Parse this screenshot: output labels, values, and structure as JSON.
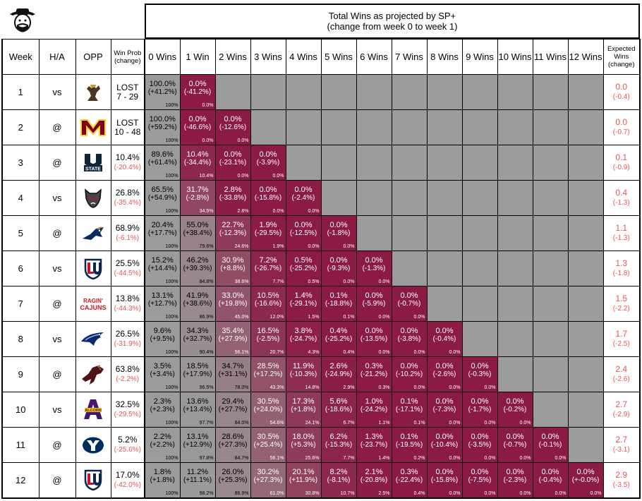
{
  "header": {
    "title_line1": "Total Wins as projected by SP+",
    "title_line2": "(change from week 0 to week 1)"
  },
  "columns": {
    "week": "Week",
    "ha": "H/A",
    "opp": "OPP",
    "winprob_line1": "Win Prob",
    "winprob_line2": "(change)",
    "wins": [
      "0 Wins",
      "1 Win",
      "2 Wins",
      "3 Wins",
      "4 Wins",
      "5 Wins",
      "6 Wins",
      "7 Wins",
      "8 Wins",
      "9 Wins",
      "10 Wins",
      "11 Wins",
      "12 Wins"
    ],
    "expected_line1": "Expected",
    "expected_line2": "Wins",
    "expected_line3": "(change)"
  },
  "colors": {
    "max": "#8b1a45",
    "min": "#9b9b9b",
    "gray_fill": "#9b9b9b",
    "negative_text": "#e15759"
  },
  "chart_data": {
    "type": "table",
    "title": "Total Wins as projected by SP+",
    "subtitle": "(change from week 0 to week 1)",
    "rows": [
      {
        "week": "1",
        "ha": "vs",
        "opp_logo": "wyoming-cowboy-logo",
        "wp": "LOST",
        "wp2": "7 - 29",
        "wp_is_result": true,
        "ex": "0.0",
        "ex_chg": "(-0.4)",
        "cells": [
          [
            "100.0%",
            "(+41.2%)",
            "100%"
          ],
          [
            "0.0%",
            "(-41.2%)",
            "0.0%"
          ]
        ]
      },
      {
        "week": "2",
        "ha": "@",
        "opp_logo": "minnesota-m-logo",
        "wp": "LOST",
        "wp2": "10 - 48",
        "wp_is_result": true,
        "ex": "0.0",
        "ex_chg": "(-0.7)",
        "cells": [
          [
            "100.0%",
            "(+59.2%)",
            "100%"
          ],
          [
            "0.0%",
            "(-46.6%)",
            "0.0%"
          ],
          [
            "0.0%",
            "(-12.6%)",
            "0.0%"
          ]
        ]
      },
      {
        "week": "3",
        "ha": "@",
        "opp_logo": "utah-state-logo",
        "wp": "10.4%",
        "wp2": "(-20.4%)",
        "wp_is_result": false,
        "ex": "0.1",
        "ex_chg": "(-0.9)",
        "cells": [
          [
            "89.6%",
            "(+61.4%)",
            "100%"
          ],
          [
            "10.4%",
            "(-34.4%)",
            "10.4%"
          ],
          [
            "0.0%",
            "(-23.1%)",
            "0.0%"
          ],
          [
            "0.0%",
            "(-3.9%)",
            "0.0%"
          ]
        ]
      },
      {
        "week": "4",
        "ha": "vs",
        "opp_logo": "new-mexico-lobo-logo",
        "wp": "26.8%",
        "wp2": "(-35.4%)",
        "wp_is_result": false,
        "ex": "0.4",
        "ex_chg": "(-1.3)",
        "cells": [
          [
            "65.5%",
            "(+54.9%)",
            "100%"
          ],
          [
            "31.7%",
            "(-2.8%)",
            "34.5%"
          ],
          [
            "2.8%",
            "(-33.8%)",
            "2.8%"
          ],
          [
            "0.0%",
            "(-15.8%)",
            "0.0%"
          ],
          [
            "0.0%",
            "(-2.4%)",
            "0.0%"
          ]
        ]
      },
      {
        "week": "5",
        "ha": "@",
        "opp_logo": "fiu-panther-logo",
        "wp": "68.9%",
        "wp2": "(-6.1%)",
        "wp_is_result": false,
        "ex": "1.1",
        "ex_chg": "(-1.3)",
        "cells": [
          [
            "20.4%",
            "(+17.7%)",
            "100%"
          ],
          [
            "55.0%",
            "(+38.4%)",
            "79.6%"
          ],
          [
            "22.7%",
            "(-12.3%)",
            "24.6%"
          ],
          [
            "1.9%",
            "(-29.5%)",
            "1.9%"
          ],
          [
            "0.0%",
            "(-12.5%)",
            "0.0%"
          ],
          [
            "0.0%",
            "(-1.8%)",
            "0.0%"
          ]
        ]
      },
      {
        "week": "6",
        "ha": "vs",
        "opp_logo": "liberty-lu-logo",
        "wp": "25.5%",
        "wp2": "(-44.5%)",
        "wp_is_result": false,
        "ex": "1.3",
        "ex_chg": "(-1.8)",
        "cells": [
          [
            "15.2%",
            "(+14.4%)",
            "100%"
          ],
          [
            "46.2%",
            "(+39.3%)",
            "84.8%"
          ],
          [
            "30.9%",
            "(+8.8%)",
            "38.6%"
          ],
          [
            "7.2%",
            "(-26.7%)",
            "7.7%"
          ],
          [
            "0.5%",
            "(-25.2%)",
            "0.5%"
          ],
          [
            "0.0%",
            "(-9.3%)",
            "0.0%"
          ],
          [
            "0.0%",
            "(-1.3%)",
            "0.0%"
          ]
        ]
      },
      {
        "week": "7",
        "ha": "@",
        "opp_logo": "ragin-cajuns-logo",
        "wp": "13.8%",
        "wp2": "(-44.3%)",
        "wp_is_result": false,
        "ex": "1.5",
        "ex_chg": "(-2.2)",
        "cells": [
          [
            "13.1%",
            "(+12.7%)",
            "100%"
          ],
          [
            "41.9%",
            "(+38.6%)",
            "86.9%"
          ],
          [
            "33.0%",
            "(+19.8%)",
            "45.0%"
          ],
          [
            "10.5%",
            "(-16.6%)",
            "12.0%"
          ],
          [
            "1.4%",
            "(-29.1%)",
            "1.5%"
          ],
          [
            "0.1%",
            "(-18.8%)",
            "0.1%"
          ],
          [
            "0.0%",
            "(-5.9%)",
            "0.0%"
          ],
          [
            "0.0%",
            "(-0.7%)",
            "0.0%"
          ]
        ]
      },
      {
        "week": "8",
        "ha": "vs",
        "opp_logo": "georgia-southern-eagle-logo",
        "wp": "26.5%",
        "wp2": "(-31.9%)",
        "wp_is_result": false,
        "ex": "1.7",
        "ex_chg": "(-2.5)",
        "cells": [
          [
            "9.6%",
            "(+9.5%)",
            "100%"
          ],
          [
            "34.3%",
            "(+32.7%)",
            "90.4%"
          ],
          [
            "35.4%",
            "(+27.9%)",
            "56.1%"
          ],
          [
            "16.5%",
            "(-2.5%)",
            "20.7%"
          ],
          [
            "3.8%",
            "(-24.7%)",
            "4.3%"
          ],
          [
            "0.4%",
            "(-25.2%)",
            "0.4%"
          ],
          [
            "0.0%",
            "(-13.5%)",
            "0.0%"
          ],
          [
            "0.0%",
            "(-3.8%)",
            "0.0%"
          ],
          [
            "0.0%",
            "(-0.4%)",
            "0.0%"
          ]
        ]
      },
      {
        "week": "9",
        "ha": "@",
        "opp_logo": "texas-state-bobcat-logo",
        "wp": "63.8%",
        "wp2": "(-2.2%)",
        "wp_is_result": false,
        "ex": "2.4",
        "ex_chg": "(-2.6)",
        "cells": [
          [
            "3.5%",
            "(+3.4%)",
            "100%"
          ],
          [
            "18.5%",
            "(+17.9%)",
            "96.5%"
          ],
          [
            "34.7%",
            "(+31.1%)",
            "78.0%"
          ],
          [
            "28.5%",
            "(+17.2%)",
            "43.3%"
          ],
          [
            "11.9%",
            "(-10.3%)",
            "14.8%"
          ],
          [
            "2.6%",
            "(-24.9%)",
            "2.9%"
          ],
          [
            "0.3%",
            "(-21.2%)",
            "0.3%"
          ],
          [
            "0.0%",
            "(-10.2%)",
            "0.0%"
          ],
          [
            "0.0%",
            "(-2.6%)",
            "0.0%"
          ],
          [
            "0.0%",
            "(-0.3%)",
            "0.0%"
          ]
        ]
      },
      {
        "week": "10",
        "ha": "vs",
        "opp_logo": "alcorn-a-logo",
        "wp": "32.5%",
        "wp2": "(-29.5%)",
        "wp_is_result": false,
        "ex": "2.7",
        "ex_chg": "(-2.9)",
        "cells": [
          [
            "2.3%",
            "(+2.3%)",
            "100%"
          ],
          [
            "13.6%",
            "(+13.4%)",
            "97.7%"
          ],
          [
            "29.4%",
            "(+27.7%)",
            "84.0%"
          ],
          [
            "30.5%",
            "(+24.0%)",
            "54.6%"
          ],
          [
            "17.3%",
            "(+1.8%)",
            "24.1%"
          ],
          [
            "5.6%",
            "(-18.6%)",
            "6.7%"
          ],
          [
            "1.0%",
            "(-24.2%)",
            "1.1%"
          ],
          [
            "0.1%",
            "(-17.1%)",
            "0.1%"
          ],
          [
            "0.0%",
            "(-7.3%)",
            "0.0%"
          ],
          [
            "0.0%",
            "(-1.7%)",
            "0.0%"
          ],
          [
            "0.0%",
            "(-0.2%)",
            "0.0%"
          ]
        ]
      },
      {
        "week": "11",
        "ha": "@",
        "opp_logo": "byu-y-logo",
        "wp": "5.2%",
        "wp2": "(-25.6%)",
        "wp_is_result": false,
        "ex": "2.7",
        "ex_chg": "(-3.1)",
        "cells": [
          [
            "2.2%",
            "(+2.2%)",
            "100%"
          ],
          [
            "13.1%",
            "(+12.9%)",
            "97.8%"
          ],
          [
            "28.6%",
            "(+27.3%)",
            "84.7%"
          ],
          [
            "30.5%",
            "(+25.4%)",
            "56.1%"
          ],
          [
            "18.0%",
            "(+5.3%)",
            "25.6%"
          ],
          [
            "6.2%",
            "(-15.3%)",
            "7.7%"
          ],
          [
            "1.3%",
            "(-23.7%)",
            "1.4%"
          ],
          [
            "0.1%",
            "(-19.5%)",
            "0.2%"
          ],
          [
            "0.0%",
            "(-10.4%)",
            "0.0%"
          ],
          [
            "0.0%",
            "(-3.5%)",
            "0.0%"
          ],
          [
            "0.0%",
            "(-0.7%)",
            "0.0%"
          ],
          [
            "0.0%",
            "(-0.1%)",
            "0.0%"
          ]
        ]
      },
      {
        "week": "12",
        "ha": "@",
        "opp_logo": "liberty-lu-logo",
        "wp": "17.0%",
        "wp2": "(-42.0%)",
        "wp_is_result": false,
        "ex": "2.9",
        "ex_chg": "(-3.5)",
        "cells": [
          [
            "1.8%",
            "(+1.8%)",
            "100%"
          ],
          [
            "11.2%",
            "(+11.1%)",
            "98.2%"
          ],
          [
            "26.0%",
            "(+25.3%)",
            "86.9%"
          ],
          [
            "30.2%",
            "(+27.3%)",
            "61.0%"
          ],
          [
            "20.1%",
            "(+11.9%)",
            "30.8%"
          ],
          [
            "8.2%",
            "(-8.1%)",
            "10.7%"
          ],
          [
            "2.1%",
            "(-20.8%)",
            "2.5%"
          ],
          [
            "0.3%",
            "(-22.4%)",
            "0.4%"
          ],
          [
            "0.0%",
            "(-15.8%)",
            "0.0%"
          ],
          [
            "0.0%",
            "(-7.5%)",
            "0.0%"
          ],
          [
            "0.0%",
            "(-2.3%)",
            "0.0%"
          ],
          [
            "0.0%",
            "(-0.4%)",
            "0.0%"
          ],
          [
            "0.0%",
            "(+-0.0%)",
            "0.0%"
          ]
        ]
      }
    ]
  }
}
